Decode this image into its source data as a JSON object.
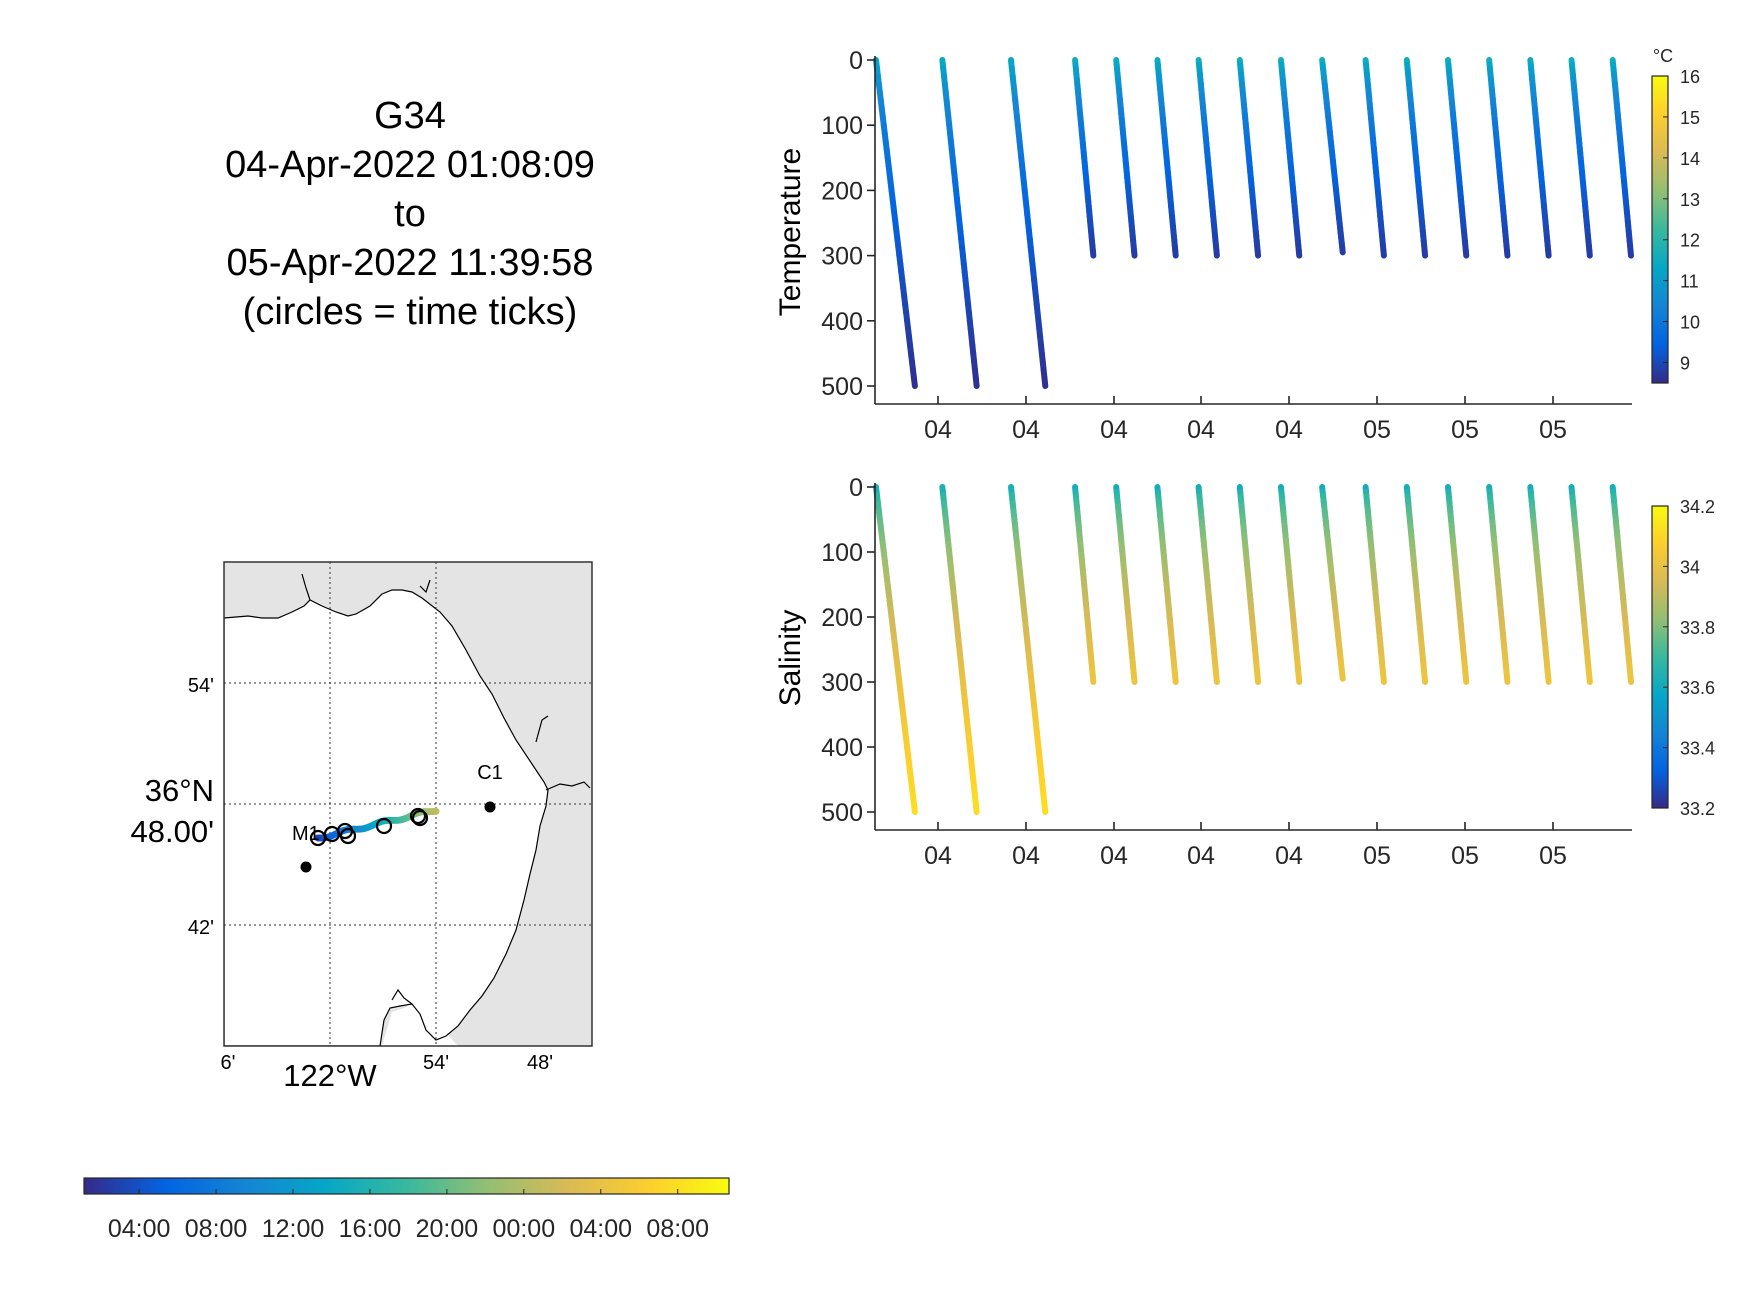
{
  "title": {
    "lines": [
      "G34",
      "04-Apr-2022 01:08:09",
      "to",
      "05-Apr-2022 11:39:58",
      "(circles = time ticks)"
    ]
  },
  "colors": {
    "parula": [
      "#352a87",
      "#0363e1",
      "#1485d4",
      "#06a7c6",
      "#38b99e",
      "#92bf73",
      "#d9ba56",
      "#fcce2e",
      "#f9fb0e"
    ],
    "land": "#e4e4e4",
    "coast": "#000000"
  },
  "map": {
    "lat_ticks": [
      "54'",
      "42'"
    ],
    "lat_major": [
      "36°N",
      "48.00'"
    ],
    "lon_ticks": [
      "6'",
      "54'",
      "48'"
    ],
    "lon_major": "122°W",
    "stations": [
      {
        "name": "C1",
        "lon": -121.847,
        "lat": 36.797
      },
      {
        "name": "M1",
        "lon": -122.029,
        "lat": 36.747
      }
    ],
    "extra_marker": {
      "lon": -122.04,
      "lat": 36.745
    }
  },
  "time_colorbar": {
    "labels": [
      "04:00",
      "08:00",
      "12:00",
      "16:00",
      "20:00",
      "00:00",
      "04:00",
      "08:00"
    ]
  },
  "chart_data": [
    {
      "type": "scatter",
      "title": "",
      "xlabel": "",
      "ylabel": "Temperature",
      "y_reversed": true,
      "ylim": [
        0,
        500
      ],
      "yticks": [
        0,
        100,
        200,
        300,
        400,
        500
      ],
      "xticklabels": [
        "04",
        "04",
        "04",
        "04",
        "04",
        "05",
        "05",
        "05"
      ],
      "colorbar": {
        "unit": "°C",
        "range": [
          8.5,
          16
        ],
        "ticks": [
          9,
          10,
          11,
          12,
          13,
          14,
          15,
          16
        ]
      },
      "profiles": [
        {
          "start_hour": 1.1,
          "end_hour": 2.8,
          "max_depth": 500,
          "surface_value": 11.6,
          "deep_value": 8.6
        },
        {
          "start_hour": 4.0,
          "end_hour": 5.5,
          "max_depth": 500,
          "surface_value": 11.8,
          "deep_value": 8.6
        },
        {
          "start_hour": 7.0,
          "end_hour": 8.5,
          "max_depth": 500,
          "surface_value": 11.8,
          "deep_value": 8.6
        },
        {
          "start_hour": 9.8,
          "end_hour": 10.6,
          "max_depth": 300,
          "surface_value": 12.0,
          "deep_value": 8.8
        },
        {
          "start_hour": 11.6,
          "end_hour": 12.4,
          "max_depth": 300,
          "surface_value": 12.0,
          "deep_value": 8.8
        },
        {
          "start_hour": 13.4,
          "end_hour": 14.2,
          "max_depth": 300,
          "surface_value": 12.0,
          "deep_value": 8.8
        },
        {
          "start_hour": 15.2,
          "end_hour": 16.0,
          "max_depth": 300,
          "surface_value": 12.0,
          "deep_value": 8.8
        },
        {
          "start_hour": 17.0,
          "end_hour": 17.8,
          "max_depth": 300,
          "surface_value": 12.0,
          "deep_value": 8.8
        },
        {
          "start_hour": 18.8,
          "end_hour": 19.6,
          "max_depth": 300,
          "surface_value": 12.0,
          "deep_value": 8.8
        },
        {
          "start_hour": 20.6,
          "end_hour": 21.5,
          "max_depth": 295,
          "surface_value": 12.0,
          "deep_value": 8.8
        },
        {
          "start_hour": 22.5,
          "end_hour": 23.3,
          "max_depth": 300,
          "surface_value": 12.0,
          "deep_value": 8.8
        },
        {
          "start_hour": 24.3,
          "end_hour": 25.1,
          "max_depth": 300,
          "surface_value": 12.0,
          "deep_value": 8.8
        },
        {
          "start_hour": 26.1,
          "end_hour": 26.9,
          "max_depth": 300,
          "surface_value": 12.0,
          "deep_value": 8.8
        },
        {
          "start_hour": 27.9,
          "end_hour": 28.7,
          "max_depth": 300,
          "surface_value": 12.0,
          "deep_value": 8.8
        },
        {
          "start_hour": 29.7,
          "end_hour": 30.5,
          "max_depth": 300,
          "surface_value": 12.0,
          "deep_value": 8.8
        },
        {
          "start_hour": 31.5,
          "end_hour": 32.3,
          "max_depth": 300,
          "surface_value": 12.0,
          "deep_value": 8.8
        },
        {
          "start_hour": 33.3,
          "end_hour": 34.1,
          "max_depth": 300,
          "surface_value": 12.0,
          "deep_value": 8.8
        }
      ]
    },
    {
      "type": "scatter",
      "title": "",
      "xlabel": "",
      "ylabel": "Salinity",
      "y_reversed": true,
      "ylim": [
        0,
        500
      ],
      "yticks": [
        0,
        100,
        200,
        300,
        400,
        500
      ],
      "xticklabels": [
        "04",
        "04",
        "04",
        "04",
        "04",
        "05",
        "05",
        "05"
      ],
      "colorbar": {
        "unit": "",
        "range": [
          33.2,
          34.2
        ],
        "ticks": [
          33.2,
          33.4,
          33.6,
          33.8,
          34,
          34.2
        ]
      },
      "profiles": [
        {
          "start_hour": 1.1,
          "end_hour": 2.8,
          "max_depth": 500,
          "surface_value": 33.55,
          "deep_value": 34.12
        },
        {
          "start_hour": 4.0,
          "end_hour": 5.5,
          "max_depth": 500,
          "surface_value": 33.55,
          "deep_value": 34.12
        },
        {
          "start_hour": 7.0,
          "end_hour": 8.5,
          "max_depth": 500,
          "surface_value": 33.55,
          "deep_value": 34.12
        },
        {
          "start_hour": 9.8,
          "end_hour": 10.6,
          "max_depth": 300,
          "surface_value": 33.55,
          "deep_value": 34.02
        },
        {
          "start_hour": 11.6,
          "end_hour": 12.4,
          "max_depth": 300,
          "surface_value": 33.55,
          "deep_value": 34.02
        },
        {
          "start_hour": 13.4,
          "end_hour": 14.2,
          "max_depth": 300,
          "surface_value": 33.55,
          "deep_value": 34.02
        },
        {
          "start_hour": 15.2,
          "end_hour": 16.0,
          "max_depth": 300,
          "surface_value": 33.55,
          "deep_value": 34.02
        },
        {
          "start_hour": 17.0,
          "end_hour": 17.8,
          "max_depth": 300,
          "surface_value": 33.55,
          "deep_value": 34.02
        },
        {
          "start_hour": 18.8,
          "end_hour": 19.6,
          "max_depth": 300,
          "surface_value": 33.55,
          "deep_value": 34.02
        },
        {
          "start_hour": 20.6,
          "end_hour": 21.5,
          "max_depth": 295,
          "surface_value": 33.55,
          "deep_value": 34.02
        },
        {
          "start_hour": 22.5,
          "end_hour": 23.3,
          "max_depth": 300,
          "surface_value": 33.55,
          "deep_value": 34.02
        },
        {
          "start_hour": 24.3,
          "end_hour": 25.1,
          "max_depth": 300,
          "surface_value": 33.55,
          "deep_value": 34.02
        },
        {
          "start_hour": 26.1,
          "end_hour": 26.9,
          "max_depth": 300,
          "surface_value": 33.55,
          "deep_value": 34.02
        },
        {
          "start_hour": 27.9,
          "end_hour": 28.7,
          "max_depth": 300,
          "surface_value": 33.55,
          "deep_value": 34.02
        },
        {
          "start_hour": 29.7,
          "end_hour": 30.5,
          "max_depth": 300,
          "surface_value": 33.55,
          "deep_value": 34.02
        },
        {
          "start_hour": 31.5,
          "end_hour": 32.3,
          "max_depth": 300,
          "surface_value": 33.55,
          "deep_value": 34.02
        },
        {
          "start_hour": 33.3,
          "end_hour": 34.1,
          "max_depth": 300,
          "surface_value": 33.55,
          "deep_value": 34.02
        }
      ]
    }
  ]
}
